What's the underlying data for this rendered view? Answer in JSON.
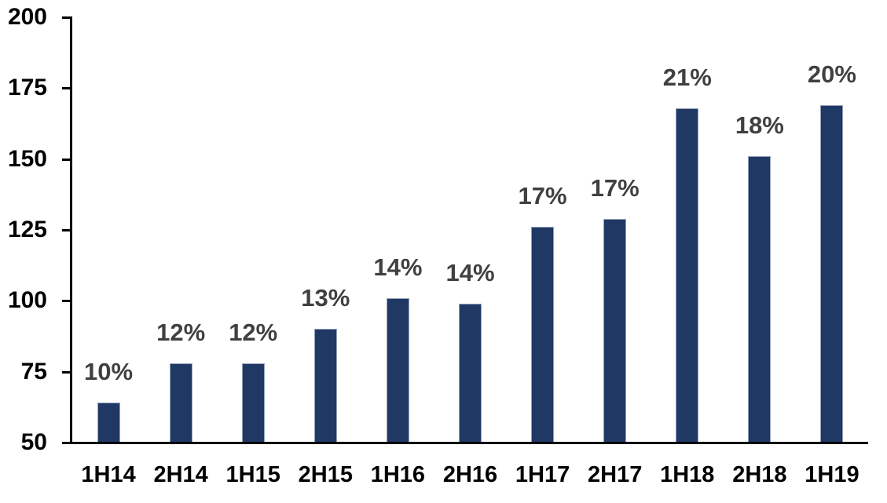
{
  "chart_data": {
    "type": "bar",
    "title": "",
    "xlabel": "",
    "ylabel": "",
    "categories": [
      "1H14",
      "2H14",
      "1H15",
      "2H15",
      "1H16",
      "2H16",
      "1H17",
      "2H17",
      "1H18",
      "2H18",
      "1H19"
    ],
    "values": [
      64,
      78,
      78,
      90,
      101,
      99,
      126,
      129,
      168,
      151,
      169
    ],
    "bar_labels": [
      "10%",
      "12%",
      "12%",
      "13%",
      "14%",
      "14%",
      "17%",
      "17%",
      "21%",
      "18%",
      "20%"
    ],
    "ylim": [
      50,
      200
    ],
    "yticks": [
      50,
      75,
      100,
      125,
      150,
      175,
      200
    ],
    "grid": false,
    "legend": "none",
    "colors": {
      "bar_fill": "#1F3864",
      "bar_border": "#97A3BC",
      "data_label": "#404040",
      "axis_text": "#000000",
      "axis_line": "#000000"
    }
  }
}
